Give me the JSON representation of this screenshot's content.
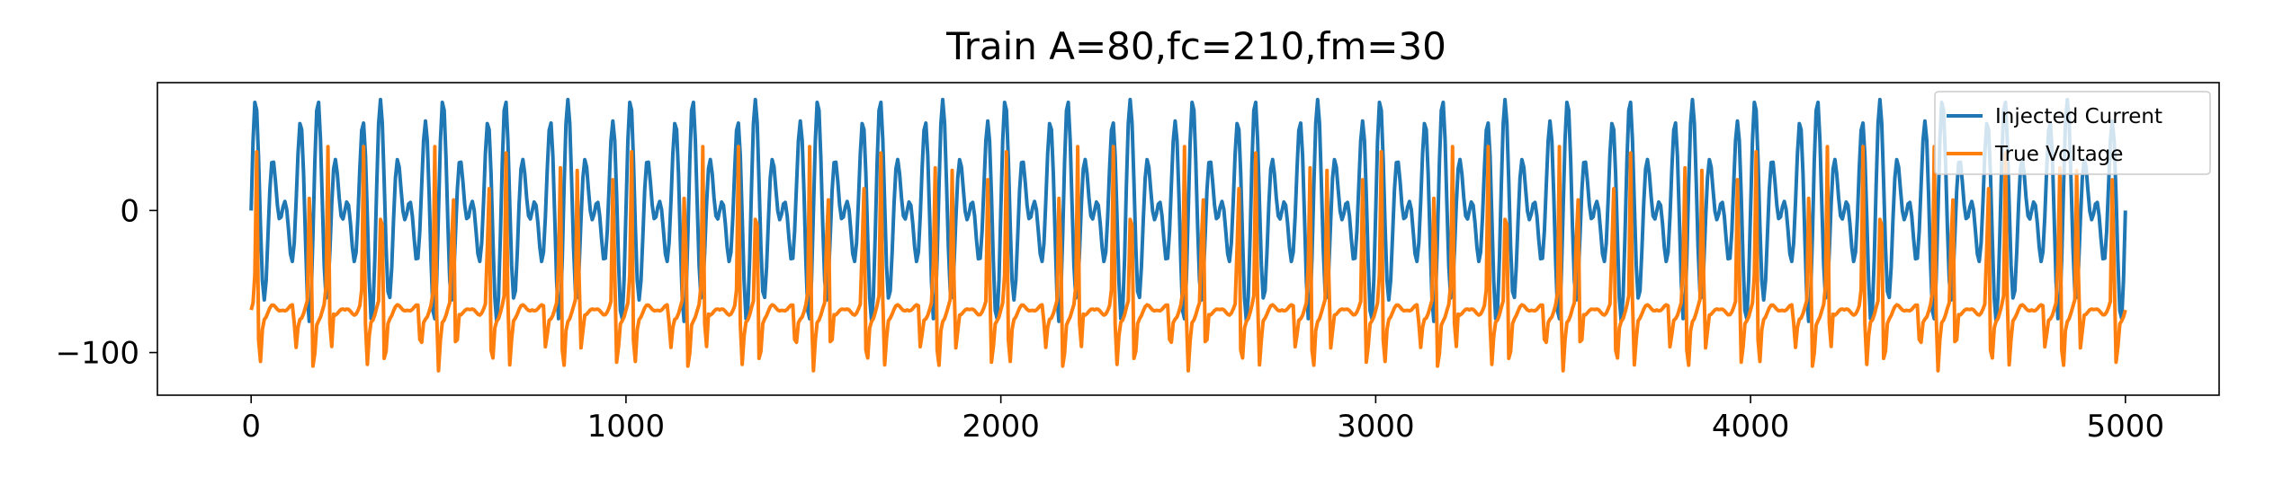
{
  "chart_data": {
    "type": "line",
    "title": "Train A=80,fc=210,fm=30",
    "xlabel": "",
    "ylabel": "",
    "xlim": [
      -250,
      5250
    ],
    "ylim": [
      -130,
      90
    ],
    "x_ticks": [
      0,
      1000,
      2000,
      3000,
      4000,
      5000
    ],
    "x_tick_labels": [
      "0",
      "1000",
      "2000",
      "3000",
      "4000",
      "5000"
    ],
    "y_ticks": [
      0,
      -100
    ],
    "y_tick_labels": [
      "0",
      "−100"
    ],
    "grid": false,
    "legend_position": "upper right",
    "x_range": [
      0,
      5000
    ],
    "sample_step": 5,
    "series": [
      {
        "name": "Injected Current",
        "color": "#1f77b4",
        "waveform": "A*cos(2*pi*fm*t)*sin(2*pi*fc*t)",
        "amplitude": 80,
        "carrier_frequency_hz": 210,
        "modulation_frequency_hz": 30
      },
      {
        "name": "True Voltage",
        "color": "#ff7f0e",
        "resting_level": -70,
        "spike_peak": 45,
        "min_level": -118
      }
    ]
  }
}
